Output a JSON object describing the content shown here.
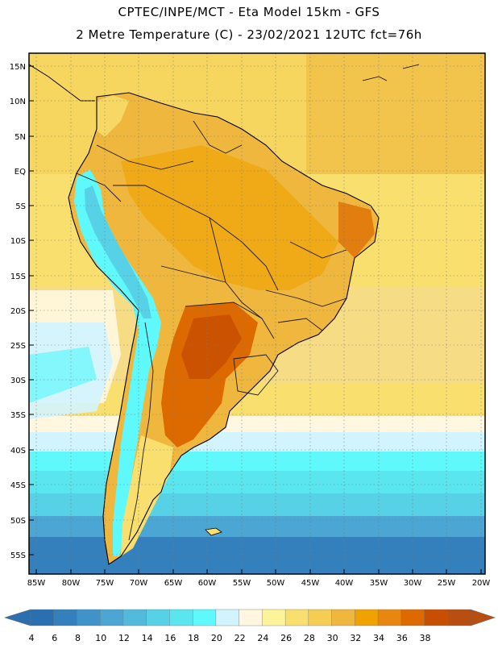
{
  "title": {
    "line1": "CPTEC/INPE/MCT  -   Eta Model 15km  -  GFS",
    "line2": "2 Metre Temperature (C) - 23/02/2021 12UTC fct=76h"
  },
  "lat_labels": [
    "15N",
    "10N",
    "5N",
    "EQ",
    "5S",
    "10S",
    "15S",
    "20S",
    "25S",
    "30S",
    "35S",
    "40S",
    "45S",
    "50S",
    "55S"
  ],
  "lon_labels": [
    "85W",
    "80W",
    "75W",
    "70W",
    "65W",
    "60W",
    "55W",
    "50W",
    "45W",
    "40W",
    "35W",
    "30W",
    "25W",
    "20W"
  ],
  "colorbar": {
    "values": [
      4,
      6,
      8,
      10,
      12,
      14,
      16,
      18,
      20,
      22,
      24,
      26,
      28,
      30,
      32,
      34,
      36,
      38
    ],
    "colors": [
      "#2a6fb0",
      "#3480bd",
      "#3f93c8",
      "#4ba6d3",
      "#52bbdc",
      "#57d1e6",
      "#5ae6ef",
      "#5ff8fb",
      "#d2f4ff",
      "#fff7e0",
      "#fdf39a",
      "#f9e06e",
      "#f4cd52",
      "#efb73e",
      "#f0a200",
      "#e88710",
      "#dd6a00",
      "#c84e00",
      "#b84e10"
    ]
  },
  "map_regions": {
    "ocean_north": "ocean-north",
    "ocean_south": "ocean-south",
    "continent": "south-america"
  }
}
